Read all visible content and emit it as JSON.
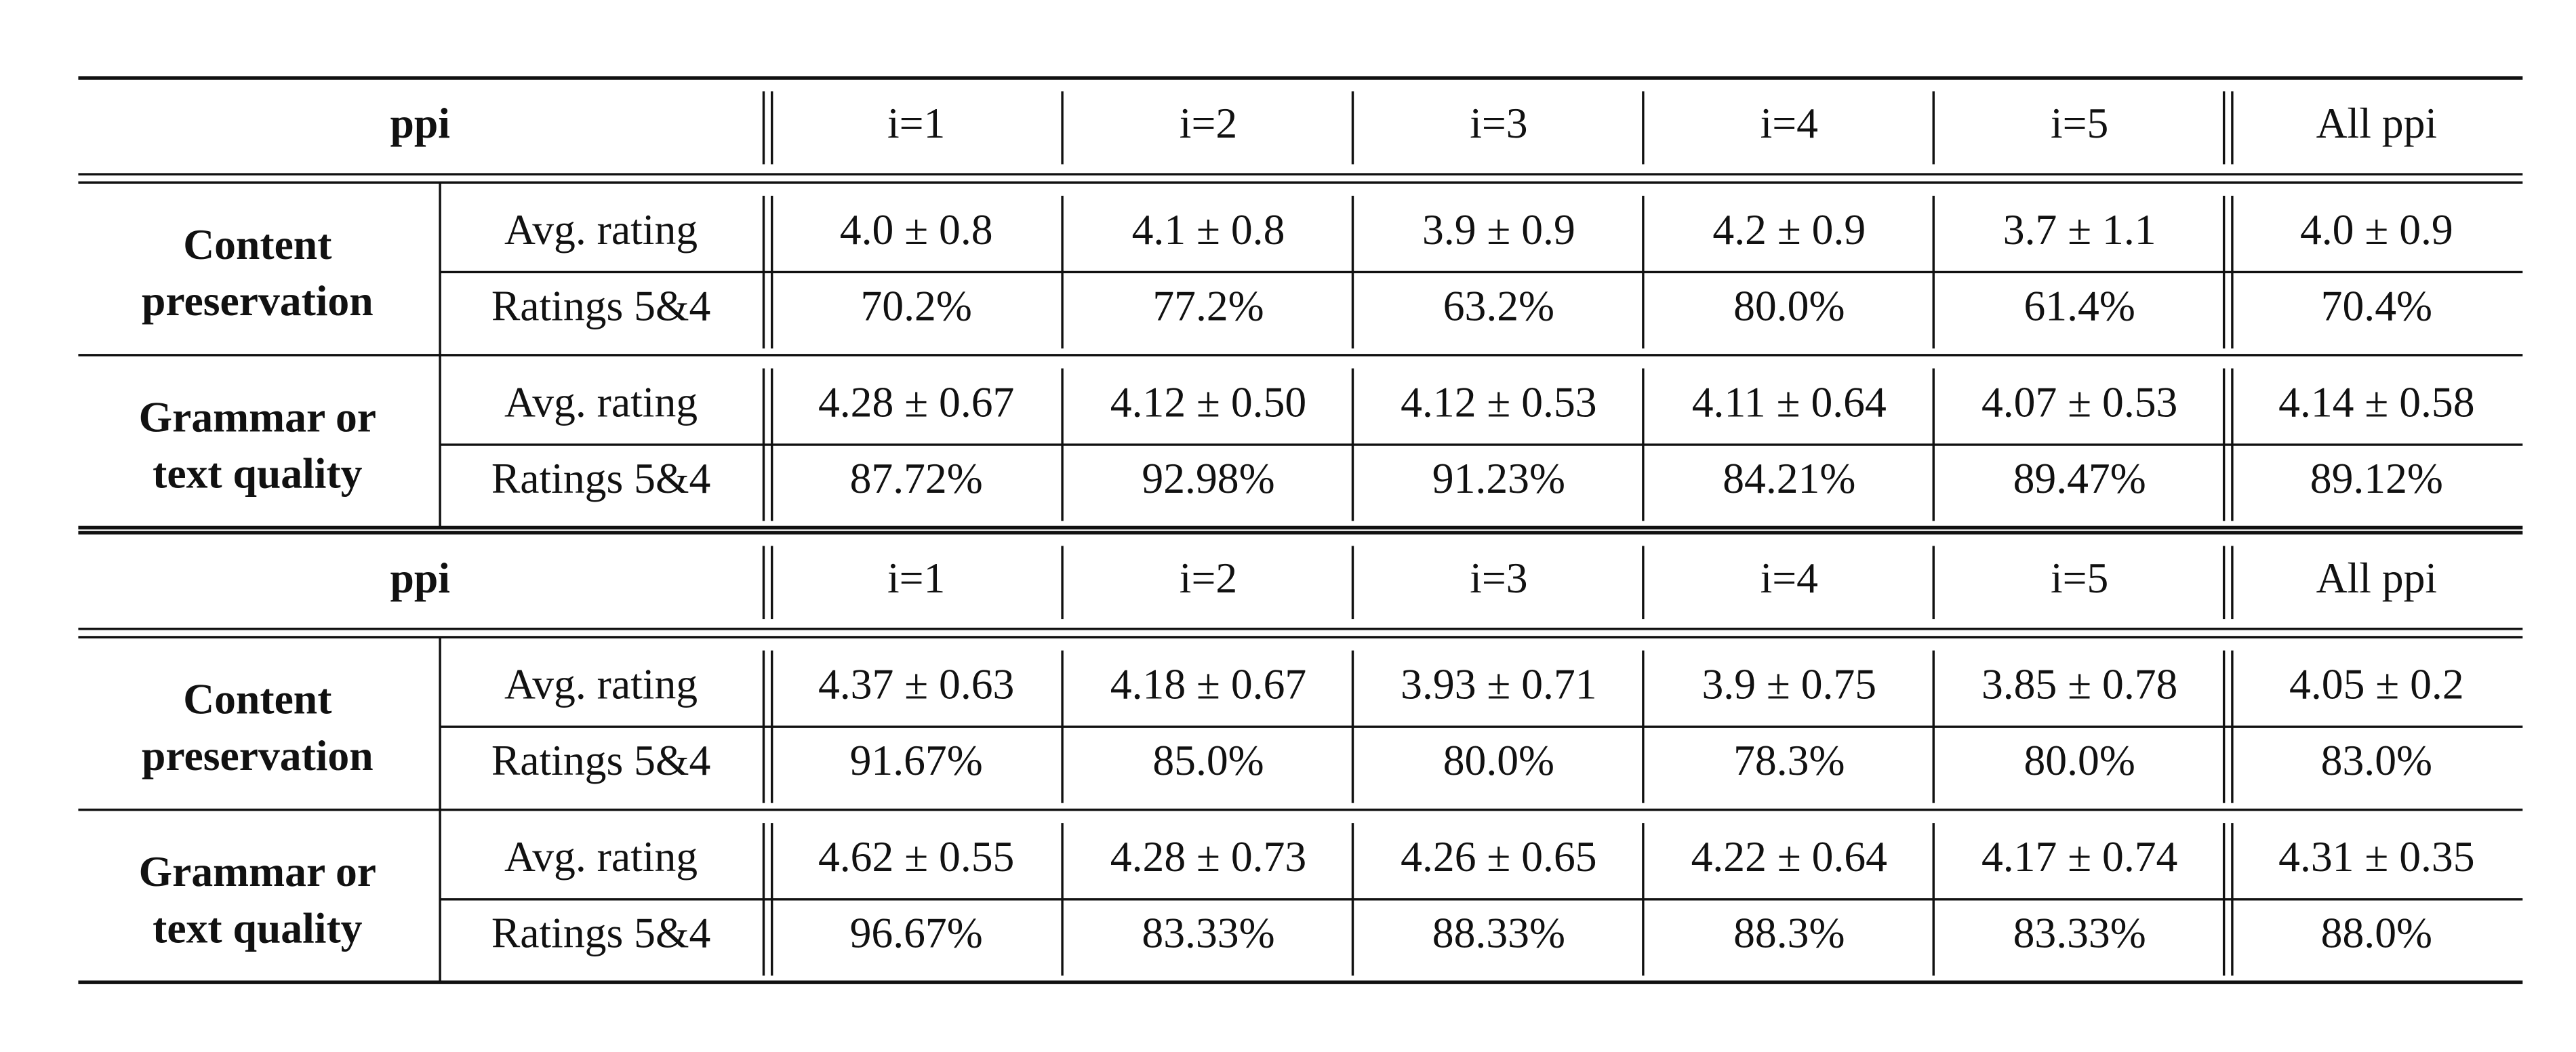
{
  "tables": [
    {
      "header": [
        "ppi",
        "i=1",
        "i=2",
        "i=3",
        "i=4",
        "i=5",
        "All ppi"
      ],
      "groups": [
        {
          "label": [
            "Content",
            "preservation"
          ],
          "rows": [
            {
              "label": "Avg. rating",
              "cells": [
                "4.0 ± 0.8",
                "4.1 ± 0.8",
                "3.9 ± 0.9",
                "4.2 ± 0.9",
                "3.7 ± 1.1",
                "4.0 ± 0.9"
              ]
            },
            {
              "label": "Ratings 5&4",
              "cells": [
                "70.2%",
                "77.2%",
                "63.2%",
                "80.0%",
                "61.4%",
                "70.4%"
              ]
            }
          ]
        },
        {
          "label": [
            "Grammar or",
            "text quality"
          ],
          "rows": [
            {
              "label": "Avg. rating",
              "cells": [
                "4.28 ± 0.67",
                "4.12 ± 0.50",
                "4.12 ± 0.53",
                "4.11 ± 0.64",
                "4.07 ± 0.53",
                "4.14 ± 0.58"
              ]
            },
            {
              "label": "Ratings 5&4",
              "cells": [
                "87.72%",
                "92.98%",
                "91.23%",
                "84.21%",
                "89.47%",
                "89.12%"
              ]
            }
          ]
        }
      ]
    },
    {
      "header": [
        "ppi",
        "i=1",
        "i=2",
        "i=3",
        "i=4",
        "i=5",
        "All ppi"
      ],
      "groups": [
        {
          "label": [
            "Content",
            "preservation"
          ],
          "rows": [
            {
              "label": "Avg. rating",
              "cells": [
                "4.37 ± 0.63",
                "4.18 ± 0.67",
                "3.93 ± 0.71",
                "3.9 ± 0.75",
                "3.85 ± 0.78",
                "4.05 ± 0.2"
              ]
            },
            {
              "label": "Ratings 5&4",
              "cells": [
                "91.67%",
                "85.0%",
                "80.0%",
                "78.3%",
                "80.0%",
                "83.0%"
              ]
            }
          ]
        },
        {
          "label": [
            "Grammar or",
            "text quality"
          ],
          "rows": [
            {
              "label": "Avg. rating",
              "cells": [
                "4.62 ± 0.55",
                "4.28 ± 0.73",
                "4.26 ± 0.65",
                "4.22 ± 0.64",
                "4.17 ± 0.74",
                "4.31 ± 0.35"
              ]
            },
            {
              "label": "Ratings 5&4",
              "cells": [
                "96.67%",
                "83.33%",
                "88.33%",
                "88.3%",
                "83.33%",
                "88.0%"
              ]
            }
          ]
        }
      ]
    }
  ]
}
